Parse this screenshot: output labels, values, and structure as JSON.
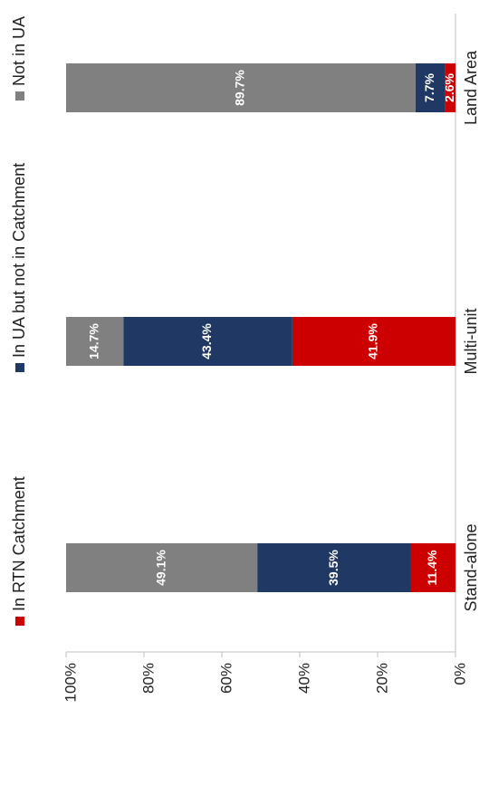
{
  "chart_data": {
    "type": "bar",
    "stacked": true,
    "percent": true,
    "orientation": "rotated",
    "categories": [
      "Stand-alone",
      "Multi-unit",
      "Land Area"
    ],
    "series": [
      {
        "name": "In RTN Catchment",
        "color": "#cc0000",
        "values": [
          11.4,
          41.9,
          2.6
        ],
        "labels": [
          "11.4%",
          "41.9%",
          "2.6%"
        ]
      },
      {
        "name": "In UA but not in Catchment",
        "color": "#1f3864",
        "values": [
          39.5,
          43.4,
          7.7
        ],
        "labels": [
          "39.5%",
          "43.4%",
          "7.7%"
        ]
      },
      {
        "name": "Not in UA",
        "color": "#808080",
        "values": [
          49.1,
          14.7,
          89.7
        ],
        "labels": [
          "49.1%",
          "14.7%",
          "89.7%"
        ]
      }
    ],
    "yticks": [
      "0%",
      "20%",
      "40%",
      "60%",
      "80%",
      "100%"
    ],
    "ylim": [
      0,
      100
    ],
    "legend_position": "top",
    "grid": false
  }
}
